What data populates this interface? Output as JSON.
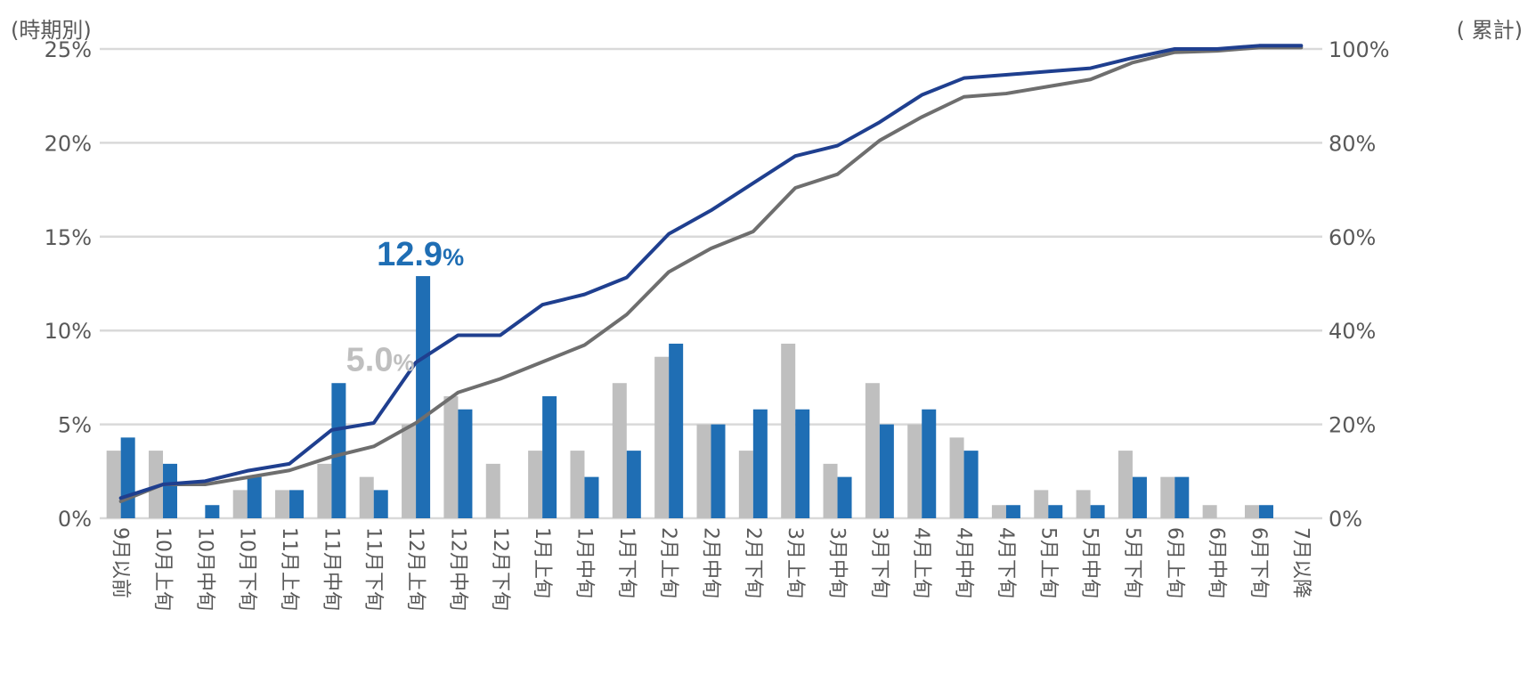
{
  "chart_data": {
    "type": "bar+line",
    "left_axis_title": "(時期別)",
    "right_axis_title": "( 累計)",
    "left_ticks": [
      "0%",
      "5%",
      "10%",
      "15%",
      "20%",
      "25%"
    ],
    "right_ticks": [
      "0%",
      "20%",
      "40%",
      "60%",
      "80%",
      "100%"
    ],
    "ylim_left": [
      0,
      25
    ],
    "ylim_right": [
      0,
      100
    ],
    "categories": [
      "9月以前",
      "10月上旬",
      "10月中旬",
      "10月下旬",
      "11月上旬",
      "11月中旬",
      "11月下旬",
      "12月上旬",
      "12月中旬",
      "12月下旬",
      "1月上旬",
      "1月中旬",
      "1月下旬",
      "2月上旬",
      "2月中旬",
      "2月下旬",
      "3月上旬",
      "3月中旬",
      "3月下旬",
      "4月上旬",
      "4月中旬",
      "4月下旬",
      "5月上旬",
      "5月中旬",
      "5月下旬",
      "6月上旬",
      "6月中旬",
      "6月下旬",
      "7月以降"
    ],
    "series": [
      {
        "name": "gray-bars",
        "kind": "bar",
        "axis": "left",
        "color": "#bfbfbf",
        "values": [
          3.6,
          3.6,
          0,
          1.5,
          1.5,
          2.9,
          2.2,
          5.0,
          6.5,
          2.9,
          3.6,
          3.6,
          7.2,
          8.6,
          5.0,
          3.6,
          9.3,
          2.9,
          7.2,
          5.0,
          4.3,
          0.7,
          1.5,
          1.5,
          3.6,
          2.2,
          0.7,
          0.7,
          0
        ]
      },
      {
        "name": "blue-bars",
        "kind": "bar",
        "axis": "left",
        "color": "#1f6eb4",
        "values": [
          4.3,
          2.9,
          0.7,
          2.2,
          1.5,
          7.2,
          1.5,
          12.9,
          5.8,
          0,
          6.5,
          2.2,
          3.6,
          9.3,
          5.0,
          5.8,
          5.8,
          2.2,
          5.0,
          5.8,
          3.6,
          0.7,
          0.7,
          0.7,
          2.2,
          2.2,
          0,
          0.7,
          0
        ]
      },
      {
        "name": "gray-cumulative",
        "kind": "line",
        "axis": "right",
        "color": "#6e6e6e",
        "values": [
          3.6,
          7.2,
          7.2,
          8.7,
          10.2,
          13.1,
          15.3,
          20.3,
          26.8,
          29.7,
          33.3,
          36.9,
          43.4,
          52.5,
          57.5,
          61.1,
          70.4,
          73.3,
          80.5,
          85.5,
          89.8,
          90.5,
          92.0,
          93.5,
          97.1,
          99.3,
          99.6,
          100.3,
          100.3
        ]
      },
      {
        "name": "blue-cumulative",
        "kind": "line",
        "axis": "right",
        "color": "#1f3f8f",
        "values": [
          4.3,
          7.2,
          7.9,
          10.1,
          11.6,
          18.8,
          20.3,
          33.2,
          39.0,
          39.0,
          45.5,
          47.7,
          51.3,
          60.6,
          65.6,
          71.4,
          77.2,
          79.4,
          84.4,
          90.2,
          93.8,
          94.5,
          95.2,
          95.9,
          98.1,
          100.0,
          100.0,
          100.7,
          100.7
        ]
      }
    ],
    "annotations": [
      {
        "series": "blue-bars",
        "index": 7,
        "value": "12.9",
        "unit": "%",
        "color": "#1f6eb4"
      },
      {
        "series": "gray-bars",
        "index": 7,
        "value": "5.0",
        "unit": "%",
        "color": "#bfbfbf"
      }
    ],
    "grid": true
  }
}
